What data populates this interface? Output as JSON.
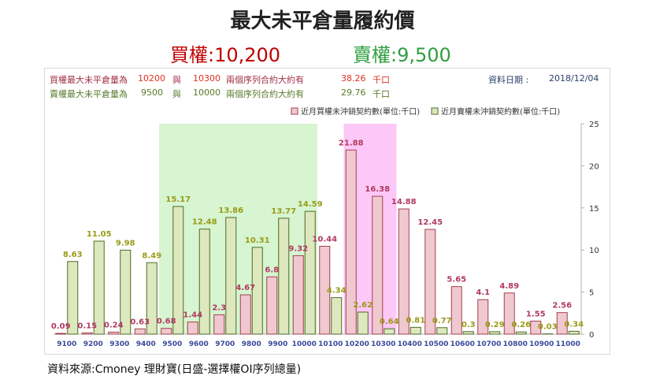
{
  "title": "最大未平倉量履約價",
  "subtitle": {
    "call": "買權:10,200",
    "put": "賣權:9,500"
  },
  "info": {
    "call": {
      "label": "買權最大未平倉量為",
      "strike1": "10200",
      "conj": "與",
      "strike2": "10300",
      "desc": "兩個序列合約大約有",
      "amount": "38.26",
      "unit": "千口"
    },
    "put": {
      "label": "賣權最大未平倉量為",
      "strike1": "9500",
      "conj": "與",
      "strike2": "10000",
      "desc": "兩個序列合約大約有",
      "amount": "29.76",
      "unit": "千口"
    },
    "date_label": "資料日期 :",
    "date": "2018/12/04"
  },
  "source": "資料來源:Cmoney 理財寶(日盛-選擇權OI序列總量)",
  "colors": {
    "call_fill": "#f0c8cf",
    "call_stroke": "#a04050",
    "call_label": "#b03a60",
    "put_fill": "#dde8bf",
    "put_stroke": "#506a26",
    "put_label": "#9a9a18",
    "green_band": "#d6f5d0",
    "pink_band": "#fcc8f8",
    "axis_text": "#3a4a9a"
  },
  "chart_data": {
    "type": "bar",
    "categories": [
      "9100",
      "9200",
      "9300",
      "9400",
      "9500",
      "9600",
      "9700",
      "9800",
      "9900",
      "10000",
      "10100",
      "10200",
      "10300",
      "10400",
      "10500",
      "10600",
      "10700",
      "10800",
      "10900",
      "11000"
    ],
    "series": [
      {
        "name": "近月買權未沖銷契約數(單位:千口)",
        "values": [
          0.09,
          0.15,
          0.24,
          0.63,
          0.68,
          1.44,
          2.3,
          4.67,
          6.8,
          9.32,
          10.44,
          21.88,
          16.38,
          14.88,
          12.45,
          5.65,
          4.1,
          4.89,
          1.55,
          2.56
        ]
      },
      {
        "name": "近月賣權未沖銷契約數(單位:千口)",
        "values": [
          8.63,
          11.05,
          9.98,
          8.49,
          15.17,
          12.48,
          13.86,
          10.31,
          13.77,
          14.59,
          4.34,
          2.62,
          0.64,
          0.81,
          0.77,
          0.3,
          0.29,
          0.26,
          0.03,
          0.34
        ]
      }
    ],
    "yticks": [
      "0",
      "5",
      "10",
      "15",
      "20",
      "25"
    ],
    "ylim": [
      0,
      25
    ],
    "highlight_ranges": [
      {
        "from": "9500",
        "to": "10000",
        "color": "green"
      },
      {
        "from": "10200",
        "to": "10300",
        "color": "pink"
      }
    ],
    "legend_position": "top-right",
    "grid": false
  }
}
